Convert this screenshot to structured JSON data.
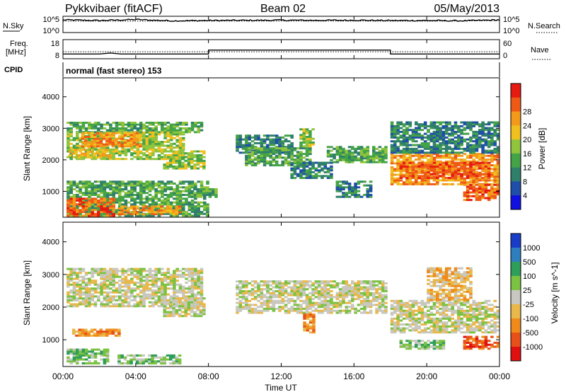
{
  "header": {
    "title": "Pykkvibaer (fitACF)",
    "beam": "Beam 02",
    "date": "05/May/2013"
  },
  "panel_nsky": {
    "left_label": "N.Sky",
    "right_label": "N.Search",
    "left_ticks": [
      "10^5",
      "10^0"
    ],
    "right_ticks": [
      "10^5",
      "10^0"
    ]
  },
  "panel_freq": {
    "left_label_1": "Freq.",
    "left_label_2": "[MHz]",
    "right_label": "Nave",
    "left_ticks": [
      "18",
      "8"
    ],
    "right_ticks": [
      "60",
      "0"
    ]
  },
  "cpid": {
    "label": "CPID",
    "mode_text": "normal (fast stereo) 153"
  },
  "time_axis": {
    "label": "Time UT",
    "ticks": [
      "00:00",
      "04:00",
      "08:00",
      "12:00",
      "16:00",
      "20:00",
      "00:00"
    ]
  },
  "chart_data": [
    {
      "type": "line",
      "title": "N.Sky / N.Search",
      "x_range_hours": [
        0,
        24
      ],
      "series": [
        {
          "name": "N.Sky",
          "style": "solid",
          "x": [
            0,
            2,
            4,
            6,
            8,
            10,
            12,
            14,
            16,
            18,
            20,
            22,
            24
          ],
          "y_frac": [
            0.78,
            0.74,
            0.8,
            0.72,
            0.74,
            0.75,
            0.76,
            0.75,
            0.76,
            0.74,
            0.74,
            0.72,
            0.78
          ]
        },
        {
          "name": "N.Search",
          "style": "dotted",
          "x": [
            0,
            6,
            12,
            18,
            21,
            24
          ],
          "y_frac": [
            0.7,
            0.7,
            0.71,
            0.7,
            0.7,
            0.74
          ]
        }
      ]
    },
    {
      "type": "line",
      "title": "Freq. / Nave",
      "x_range_hours": [
        0,
        24
      ],
      "series": [
        {
          "name": "Freq.",
          "style": "solid",
          "x": [
            0,
            2.0,
            2.6,
            3.2,
            8.0,
            8.0,
            18.0,
            18.0,
            24
          ],
          "y": [
            10.5,
            10.5,
            11.0,
            10.5,
            10.5,
            12.5,
            12.5,
            10.5,
            10.5
          ]
        },
        {
          "name": "Nave",
          "style": "dotted",
          "x": [
            0,
            24
          ],
          "y": [
            22,
            22
          ]
        }
      ]
    },
    {
      "type": "heatmap",
      "quantity": "Power",
      "ylabel": "Slant Range [km]",
      "xlabel": "Time UT",
      "x_range_hours": [
        0,
        24
      ],
      "ylim": [
        180,
        4600
      ],
      "yticks": [
        1000,
        2000,
        3000,
        4000
      ],
      "colorbar": {
        "label": "Power [dB]",
        "ticks": [
          "4",
          "8",
          "12",
          "16",
          "20",
          "24",
          "28"
        ],
        "colors": [
          "#1010e0",
          "#1f4fa8",
          "#2f7f6a",
          "#44a347",
          "#8fc43c",
          "#f0c020",
          "#f39a1a",
          "#ee5a16",
          "#e61a10"
        ]
      },
      "regions": [
        {
          "t": [
            0.2,
            7.6
          ],
          "r": [
            2850,
            3200
          ],
          "level": 3
        },
        {
          "t": [
            0.2,
            6.6
          ],
          "r": [
            2000,
            2900
          ],
          "level": 4
        },
        {
          "t": [
            1.0,
            4.2
          ],
          "r": [
            2400,
            2850
          ],
          "level": 6
        },
        {
          "t": [
            0.3,
            2.5
          ],
          "r": [
            2050,
            2350
          ],
          "level": 5
        },
        {
          "t": [
            5.5,
            7.8
          ],
          "r": [
            1700,
            2300
          ],
          "level": 4
        },
        {
          "t": [
            0.2,
            8.0
          ],
          "r": [
            200,
            1300
          ],
          "level": 3
        },
        {
          "t": [
            0.2,
            2.8
          ],
          "r": [
            200,
            800
          ],
          "level": 7
        },
        {
          "t": [
            3.0,
            6.5
          ],
          "r": [
            250,
            500
          ],
          "level": 6
        },
        {
          "t": [
            7.0,
            8.5
          ],
          "r": [
            800,
            1100
          ],
          "level": 3
        },
        {
          "t": [
            9.5,
            12.5
          ],
          "r": [
            2200,
            2800
          ],
          "level": 2
        },
        {
          "t": [
            10.0,
            13.5
          ],
          "r": [
            1800,
            2400
          ],
          "level": 3
        },
        {
          "t": [
            13.0,
            13.8
          ],
          "r": [
            2400,
            2950
          ],
          "level": 4
        },
        {
          "t": [
            12.5,
            14.8
          ],
          "r": [
            1400,
            1900
          ],
          "level": 2
        },
        {
          "t": [
            14.5,
            17.8
          ],
          "r": [
            1900,
            2400
          ],
          "level": 3
        },
        {
          "t": [
            15.0,
            17.0
          ],
          "r": [
            800,
            1300
          ],
          "level": 2
        },
        {
          "t": [
            18.0,
            24.0
          ],
          "r": [
            1200,
            2200
          ],
          "level": 6
        },
        {
          "t": [
            18.5,
            23.5
          ],
          "r": [
            1400,
            1900
          ],
          "level": 7
        },
        {
          "t": [
            18.0,
            24.0
          ],
          "r": [
            2200,
            3200
          ],
          "level": 2
        },
        {
          "t": [
            22.0,
            24.0
          ],
          "r": [
            700,
            1200
          ],
          "level": 7
        }
      ]
    },
    {
      "type": "heatmap",
      "quantity": "Velocity",
      "ylabel": "Slant Range [km]",
      "xlabel": "Time UT",
      "x_range_hours": [
        0,
        24
      ],
      "ylim": [
        180,
        4600
      ],
      "yticks": [
        1000,
        2000,
        3000,
        4000
      ],
      "colorbar": {
        "label": "Velocity [m s^-1]",
        "ticks": [
          "1000",
          "500",
          "100",
          "25",
          "-25",
          "-100",
          "-500",
          "-1000"
        ],
        "colors": [
          "#1a3dc8",
          "#2f7fbf",
          "#2f9e5a",
          "#7cc242",
          "#c8c8c0",
          "#e8b84a",
          "#f08a1a",
          "#e8501a",
          "#e01010"
        ]
      },
      "regions": [
        {
          "t": [
            0.2,
            7.6
          ],
          "r": [
            2000,
            3200
          ],
          "level": 4
        },
        {
          "t": [
            0.5,
            3.0
          ],
          "r": [
            1100,
            1300
          ],
          "level": 6
        },
        {
          "t": [
            0.2,
            2.5
          ],
          "r": [
            250,
            700
          ],
          "level": 3
        },
        {
          "t": [
            3.0,
            6.5
          ],
          "r": [
            250,
            500
          ],
          "level": 3
        },
        {
          "t": [
            5.5,
            7.8
          ],
          "r": [
            1700,
            2300
          ],
          "level": 4
        },
        {
          "t": [
            9.5,
            17.8
          ],
          "r": [
            1800,
            2800
          ],
          "level": 4
        },
        {
          "t": [
            13.2,
            13.8
          ],
          "r": [
            1200,
            1800
          ],
          "level": 6
        },
        {
          "t": [
            18.0,
            24.0
          ],
          "r": [
            1200,
            2200
          ],
          "level": 4
        },
        {
          "t": [
            20.0,
            22.5
          ],
          "r": [
            2200,
            3200
          ],
          "level": 5
        },
        {
          "t": [
            22.0,
            24.0
          ],
          "r": [
            700,
            1100
          ],
          "level": 7
        },
        {
          "t": [
            18.5,
            21.0
          ],
          "r": [
            700,
            1000
          ],
          "level": 3
        }
      ]
    }
  ]
}
